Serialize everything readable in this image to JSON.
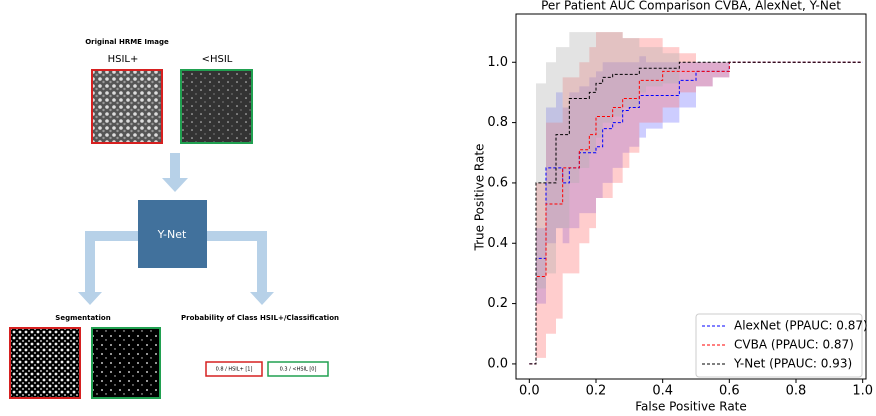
{
  "diagram": {
    "input_title": "Original HRME Image",
    "input_labels": [
      "HSIL+",
      "<HSIL"
    ],
    "model": "Y-Net",
    "segmentation_title": "Segmentation",
    "classification_title": "Probability of Class HSIL+/Classification",
    "outputs": [
      "0.8 / HSIL+ [1]",
      "0.3 / <HSIL [0]"
    ]
  },
  "chart_data": {
    "type": "line",
    "drawstyle": "steps-post",
    "title": "Per Patient AUC Comparison CVBA, AlexNet, Y-Net",
    "xlabel": "False Positive Rate",
    "ylabel": "True Positive Rate",
    "xlim": [
      -0.04,
      1.01
    ],
    "ylim": [
      -0.05,
      1.16
    ],
    "xticks": [
      {
        "value": 0,
        "label": "0.0"
      },
      0.2,
      0.4,
      0.6,
      0.8,
      {
        "value": 1,
        "label": "1.0"
      }
    ],
    "yticks": [
      {
        "value": 0,
        "label": "0.0"
      },
      0.2,
      0.4,
      0.6,
      0.8,
      {
        "value": 1,
        "label": "1.0"
      }
    ],
    "legend": "lower right",
    "x": [
      0,
      0.02,
      0.05,
      0.08,
      0.1,
      0.12,
      0.15,
      0.18,
      0.2,
      0.22,
      0.25,
      0.28,
      0.3,
      0.33,
      0.35,
      0.4,
      0.45,
      0.5,
      0.55,
      0.6,
      1.0
    ],
    "series": [
      {
        "name": "AlexNet (PPAUC: 0.87)",
        "color": "#0000ff",
        "band_color": "#7070ff",
        "values": [
          0,
          0.35,
          0.65,
          0.65,
          0.6,
          0.65,
          0.7,
          0.7,
          0.72,
          0.78,
          0.8,
          0.84,
          0.85,
          0.89,
          0.89,
          0.89,
          0.94,
          0.97,
          0.97,
          1,
          1
        ],
        "upper": [
          0,
          0.45,
          0.85,
          0.9,
          0.85,
          0.9,
          0.92,
          0.95,
          0.97,
          1.0,
          1.0,
          1.0,
          1.0,
          1.02,
          1.0,
          1.0,
          1.0,
          1,
          1,
          1,
          1
        ],
        "lower": [
          0,
          0.2,
          0.4,
          0.45,
          0.4,
          0.45,
          0.5,
          0.5,
          0.55,
          0.6,
          0.65,
          0.7,
          0.72,
          0.75,
          0.78,
          0.8,
          0.85,
          0.92,
          0.95,
          1,
          1
        ]
      },
      {
        "name": "CVBA (PPAUC: 0.87)",
        "color": "#ff0000",
        "band_color": "#ff7070",
        "values": [
          0,
          0.29,
          0.53,
          0.53,
          0.65,
          0.65,
          0.71,
          0.76,
          0.82,
          0.82,
          0.85,
          0.88,
          0.88,
          0.94,
          0.94,
          0.97,
          0.97,
          0.97,
          0.97,
          1,
          1
        ],
        "upper": [
          0,
          0.6,
          0.8,
          0.8,
          0.95,
          0.95,
          1.0,
          1.05,
          1.1,
          1.1,
          1.1,
          1.08,
          1.08,
          1.08,
          1.08,
          1.05,
          1.03,
          1,
          1,
          1,
          1
        ],
        "lower": [
          0,
          0.02,
          0.1,
          0.15,
          0.3,
          0.3,
          0.4,
          0.45,
          0.55,
          0.55,
          0.6,
          0.65,
          0.7,
          0.8,
          0.8,
          0.85,
          0.9,
          0.92,
          0.95,
          1,
          1
        ]
      },
      {
        "name": "Y-Net (PPAUC: 0.93)",
        "color": "#000000",
        "band_color": "#b0b0b0",
        "values": [
          0,
          0.6,
          0.6,
          0.76,
          0.76,
          0.88,
          0.88,
          0.9,
          0.93,
          0.95,
          0.96,
          0.96,
          0.96,
          0.98,
          0.98,
          0.98,
          1,
          1,
          1,
          1,
          1
        ],
        "upper": [
          0,
          0.93,
          1.0,
          1.05,
          1.05,
          1.1,
          1.1,
          1.1,
          1.1,
          1.1,
          1.1,
          1.08,
          1.08,
          1.05,
          1.05,
          1.03,
          1.0,
          1,
          1,
          1,
          1
        ],
        "lower": [
          0,
          0.25,
          0.3,
          0.45,
          0.45,
          0.6,
          0.65,
          0.7,
          0.75,
          0.8,
          0.82,
          0.85,
          0.85,
          0.9,
          0.92,
          0.93,
          1,
          1,
          1,
          1,
          1
        ]
      }
    ]
  }
}
